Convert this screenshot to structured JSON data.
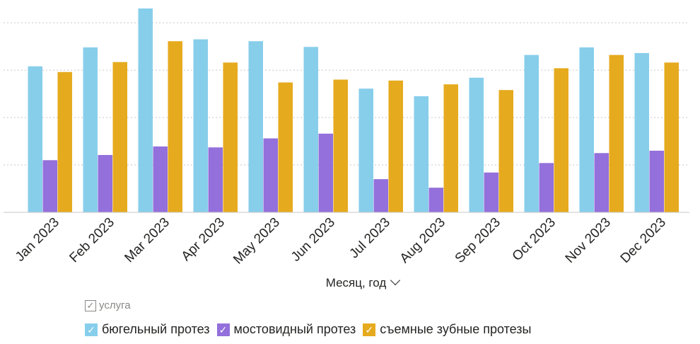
{
  "chart_data": {
    "type": "bar",
    "categories": [
      "Jan 2023",
      "Feb 2023",
      "Mar 2023",
      "Apr 2023",
      "May 2023",
      "Jun 2023",
      "Jul 2023",
      "Aug 2023",
      "Sep 2023",
      "Oct 2023",
      "Nov 2023",
      "Dec 2023"
    ],
    "series": [
      {
        "name": "бюгельный протез",
        "color": "#87CEEB",
        "values": [
          308,
          348,
          430,
          365,
          361,
          349,
          261,
          245,
          284,
          332,
          348,
          336
        ]
      },
      {
        "name": "мостовидный протез",
        "color": "#9370DB",
        "values": [
          110,
          121,
          139,
          137,
          156,
          166,
          70,
          52,
          84,
          104,
          125,
          130
        ]
      },
      {
        "name": "съемные зубные протезы",
        "color": "#E6AA1E",
        "values": [
          296,
          317,
          361,
          316,
          274,
          280,
          278,
          270,
          258,
          304,
          332,
          316
        ]
      }
    ],
    "xlabel": "Месяц, год",
    "ylabel": "",
    "ylim": [
      0,
      430
    ],
    "gridlines": [
      100,
      200,
      300,
      400
    ],
    "grid": true,
    "legend_title": "услуга",
    "legend_position": "bottom-left"
  }
}
